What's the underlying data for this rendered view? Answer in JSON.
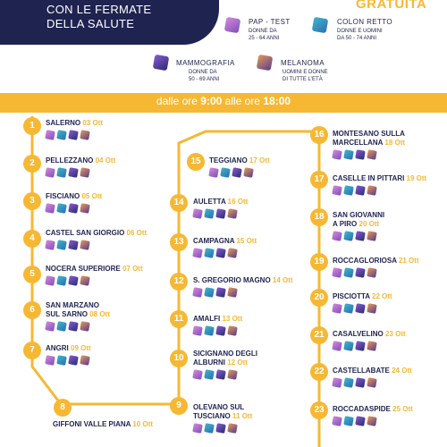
{
  "header": {
    "line1": "CON LE FERMATE",
    "line2": "DELLA SALUTE",
    "gratuita": "GRATUITA"
  },
  "legend": [
    {
      "key": "pap",
      "title": "PAP - TEST",
      "desc": [
        "DONNE DA",
        "25 - 64 ANNI"
      ],
      "colors": [
        "#d58ad8",
        "#7f4fbf"
      ]
    },
    {
      "key": "colon",
      "title": "COLON RETTO",
      "desc": [
        "DONNE E UOMINI",
        "DA 50 - 74 ANNI"
      ],
      "colors": [
        "#40b6c8",
        "#2a6fb4"
      ]
    },
    {
      "key": "mammo",
      "title": "MAMMOGRAFIA",
      "desc": [
        "DONNE DA",
        "50 - 69 ANNI"
      ],
      "colors": [
        "#8a5ad6",
        "#2a2d6e"
      ]
    },
    {
      "key": "mela",
      "title": "MELANOMA",
      "desc": [
        "UOMINI E DONNE",
        "DI TUTTE L'ETÀ"
      ],
      "colors": [
        "#e29a5a",
        "#5a3c8e"
      ]
    }
  ],
  "time": {
    "prefix": "dalle ore ",
    "start": "9:00",
    "middle": " alle ore ",
    "end": "18:00"
  },
  "stops": [
    {
      "num": "1",
      "name": "SALERNO",
      "date": "03 Ott"
    },
    {
      "num": "2",
      "name": "PELLEZZANO",
      "date": "04 Ott"
    },
    {
      "num": "3",
      "name": "FISCIANO",
      "date": "05 Ott"
    },
    {
      "num": "4",
      "name": "CASTEL SAN GIORGIO",
      "date": "06 Ott"
    },
    {
      "num": "5",
      "name": "NOCERA SUPERIORE",
      "date": "07 Ott"
    },
    {
      "num": "6",
      "name": "SAN MARZANO",
      "name2": "SUL SARNO",
      "date": "08 Ott"
    },
    {
      "num": "7",
      "name": "ANGRI",
      "date": "09 Ott"
    },
    {
      "num": "8",
      "name": "GIFFONI VALLE PIANA",
      "date": "10 Ott"
    },
    {
      "num": "9",
      "name": "OLEVANO SUL",
      "name2": "TUSCIANO",
      "date": "11 Ott"
    },
    {
      "num": "10",
      "name": "SICIGNANO DEGLI",
      "name2": "ALBURNI",
      "date": "12 Ott"
    },
    {
      "num": "11",
      "name": "AMALFI",
      "date": "13 Ott"
    },
    {
      "num": "12",
      "name": "S. GREGORIO MAGNO",
      "date": "14 Ott"
    },
    {
      "num": "13",
      "name": "CAMPAGNA",
      "date": "15 Ott"
    },
    {
      "num": "14",
      "name": "AULETTA",
      "date": "16 Ott"
    },
    {
      "num": "15",
      "name": "TEGGIANO",
      "date": "17 Ott"
    },
    {
      "num": "16",
      "name": "MONTESANO SULLA",
      "name2": "MARCELLANA",
      "date": "18 Ott"
    },
    {
      "num": "17",
      "name": "CASELLE IN PITTARI",
      "date": "19 Ott"
    },
    {
      "num": "18",
      "name": "SAN GIOVANNI",
      "name2": "A PIRO",
      "date": "20 Ott"
    },
    {
      "num": "19",
      "name": "ROCCAGLORIOSA",
      "date": "21 Ott"
    },
    {
      "num": "20",
      "name": "PISCIOTTA",
      "date": "22 Ott"
    },
    {
      "num": "21",
      "name": "CASALVELINO",
      "date": "23 Ott"
    },
    {
      "num": "22",
      "name": "CASTELLABATE",
      "date": "24 Ott"
    },
    {
      "num": "23",
      "name": "ROCCADASPIDE",
      "date": "25 Ott"
    }
  ],
  "colors": {
    "navy": "#1f2350",
    "gold": "#f6b833"
  }
}
